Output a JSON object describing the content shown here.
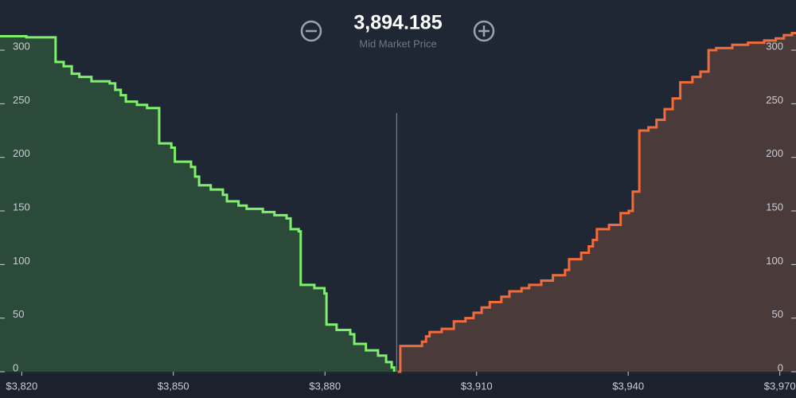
{
  "chart_data": {
    "type": "depth",
    "mid_price": {
      "value": 3894.185,
      "label": "3,894.185"
    },
    "mid_label": "Mid Market Price",
    "xlim": [
      3815.7,
      3973.2
    ],
    "ylim": [
      0,
      346.8
    ],
    "xticks": [
      {
        "value": 3820,
        "label": "$3,820"
      },
      {
        "value": 3850,
        "label": "$3,850"
      },
      {
        "value": 3880,
        "label": "$3,880"
      },
      {
        "value": 3910,
        "label": "$3,910"
      },
      {
        "value": 3940,
        "label": "$3,940"
      },
      {
        "value": 3970,
        "label": "$3,970"
      }
    ],
    "yticks": [
      0,
      50,
      100,
      150,
      200,
      250,
      300
    ],
    "series": [
      {
        "color": "#7ef06b",
        "fill": "#2c4a3a",
        "x": [
          3815.7,
          3820.9,
          3826.7,
          3828.3,
          3829.9,
          3831.4,
          3833.8,
          3837.4,
          3838.5,
          3839.6,
          3840.6,
          3842.8,
          3844.8,
          3847.2,
          3849.6,
          3850.3,
          3853.5,
          3854.3,
          3855.1,
          3857.4,
          3859.8,
          3860.6,
          3862.9,
          3864.5,
          3867.7,
          3870.0,
          3872.4,
          3873.2,
          3874.8,
          3875.2,
          3877.9,
          3879.9,
          3880.3,
          3882.3,
          3885.0,
          3885.8,
          3888.1,
          3890.5,
          3892.1,
          3893.2,
          3893.7
        ],
        "values": [
          313,
          312,
          289,
          285,
          278,
          275,
          271,
          269,
          263,
          258,
          252,
          249,
          246,
          213,
          209,
          196,
          191,
          182,
          174,
          170,
          165,
          159,
          155,
          152,
          149,
          146,
          143,
          133,
          131,
          81,
          78,
          73,
          44,
          39,
          35,
          26,
          20,
          15,
          9,
          4,
          0
        ]
      },
      {
        "color": "#f26b3a",
        "fill": "#4b3a3a",
        "x": [
          3894.4,
          3894.9,
          3899.2,
          3900.0,
          3900.7,
          3903.1,
          3905.5,
          3907.8,
          3909.4,
          3911.0,
          3912.6,
          3914.9,
          3916.5,
          3918.9,
          3920.4,
          3922.8,
          3925.1,
          3927.5,
          3928.3,
          3930.7,
          3932.2,
          3933.0,
          3933.8,
          3936.2,
          3938.5,
          3940.1,
          3940.9,
          3942.2,
          3944.0,
          3945.6,
          3947.2,
          3948.8,
          3950.3,
          3952.7,
          3954.3,
          3955.9,
          3957.4,
          3960.6,
          3963.7,
          3966.9,
          3969.2,
          3970.8,
          3972.4
        ],
        "values": [
          0,
          24,
          28,
          33,
          37,
          40,
          47,
          50,
          55,
          60,
          65,
          70,
          75,
          78,
          81,
          85,
          90,
          95,
          105,
          111,
          117,
          123,
          133,
          137,
          148,
          150,
          168,
          225,
          228,
          235,
          245,
          255,
          270,
          275,
          280,
          300,
          302,
          305,
          307,
          309,
          311,
          314,
          316
        ]
      }
    ]
  }
}
